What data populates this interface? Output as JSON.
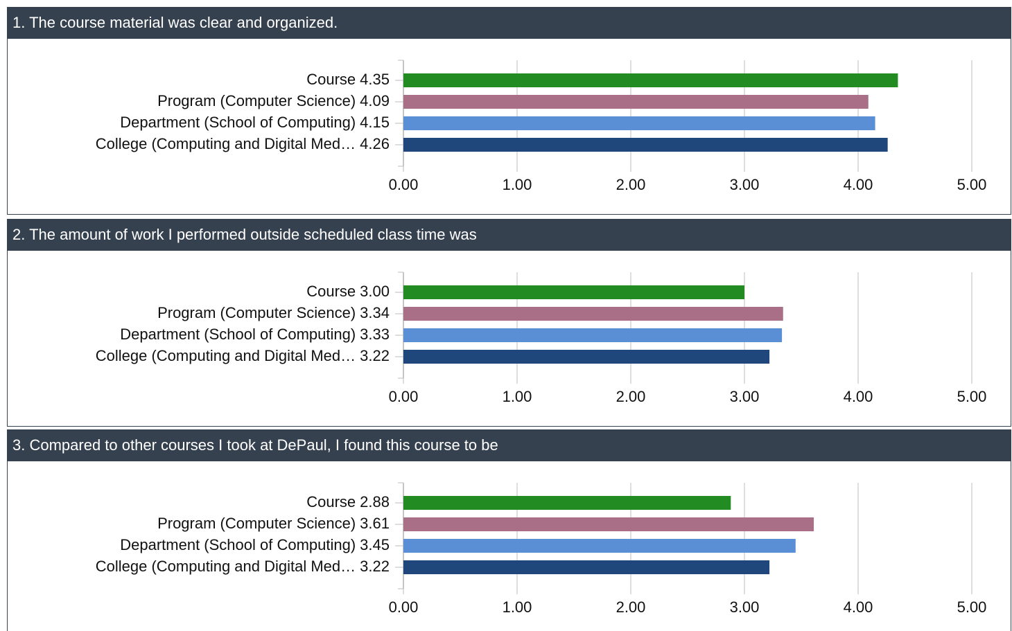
{
  "chart_data": [
    {
      "type": "barh",
      "title": "1. The course material was clear and organized.",
      "categories": [
        "Course",
        "Program (Computer Science)",
        "Department (School of Computing)",
        "College (Computing and Digital Med…"
      ],
      "values": [
        4.35,
        4.09,
        4.15,
        4.26
      ],
      "value_labels": [
        "4.35",
        "4.09",
        "4.15",
        "4.26"
      ],
      "colors": [
        "#228b22",
        "#a86f86",
        "#5a8fd6",
        "#1f477c"
      ],
      "xlim": [
        0,
        5
      ],
      "xticks": [
        {
          "value": 0,
          "label": "0.00"
        },
        {
          "value": 1,
          "label": "1.00"
        },
        {
          "value": 2,
          "label": "2.00"
        },
        {
          "value": 3,
          "label": "3.00"
        },
        {
          "value": 4,
          "label": "4.00"
        },
        {
          "value": 5,
          "label": "5.00"
        }
      ],
      "grid": true
    },
    {
      "type": "barh",
      "title": "2. The amount of work I performed outside scheduled class time was",
      "categories": [
        "Course",
        "Program (Computer Science)",
        "Department (School of Computing)",
        "College (Computing and Digital Med…"
      ],
      "values": [
        3.0,
        3.34,
        3.33,
        3.22
      ],
      "value_labels": [
        "3.00",
        "3.34",
        "3.33",
        "3.22"
      ],
      "colors": [
        "#228b22",
        "#a86f86",
        "#5a8fd6",
        "#1f477c"
      ],
      "xlim": [
        0,
        5
      ],
      "xticks": [
        {
          "value": 0,
          "label": "0.00"
        },
        {
          "value": 1,
          "label": "1.00"
        },
        {
          "value": 2,
          "label": "2.00"
        },
        {
          "value": 3,
          "label": "3.00"
        },
        {
          "value": 4,
          "label": "4.00"
        },
        {
          "value": 5,
          "label": "5.00"
        }
      ],
      "grid": true
    },
    {
      "type": "barh",
      "title": "3. Compared to other courses I took at DePaul, I found this course to be",
      "categories": [
        "Course",
        "Program (Computer Science)",
        "Department (School of Computing)",
        "College (Computing and Digital Med…"
      ],
      "values": [
        2.88,
        3.61,
        3.45,
        3.22
      ],
      "value_labels": [
        "2.88",
        "3.61",
        "3.45",
        "3.22"
      ],
      "colors": [
        "#228b22",
        "#a86f86",
        "#5a8fd6",
        "#1f477c"
      ],
      "xlim": [
        0,
        5
      ],
      "xticks": [
        {
          "value": 0,
          "label": "0.00"
        },
        {
          "value": 1,
          "label": "1.00"
        },
        {
          "value": 2,
          "label": "2.00"
        },
        {
          "value": 3,
          "label": "3.00"
        },
        {
          "value": 4,
          "label": "4.00"
        },
        {
          "value": 5,
          "label": "5.00"
        }
      ],
      "grid": true
    }
  ]
}
